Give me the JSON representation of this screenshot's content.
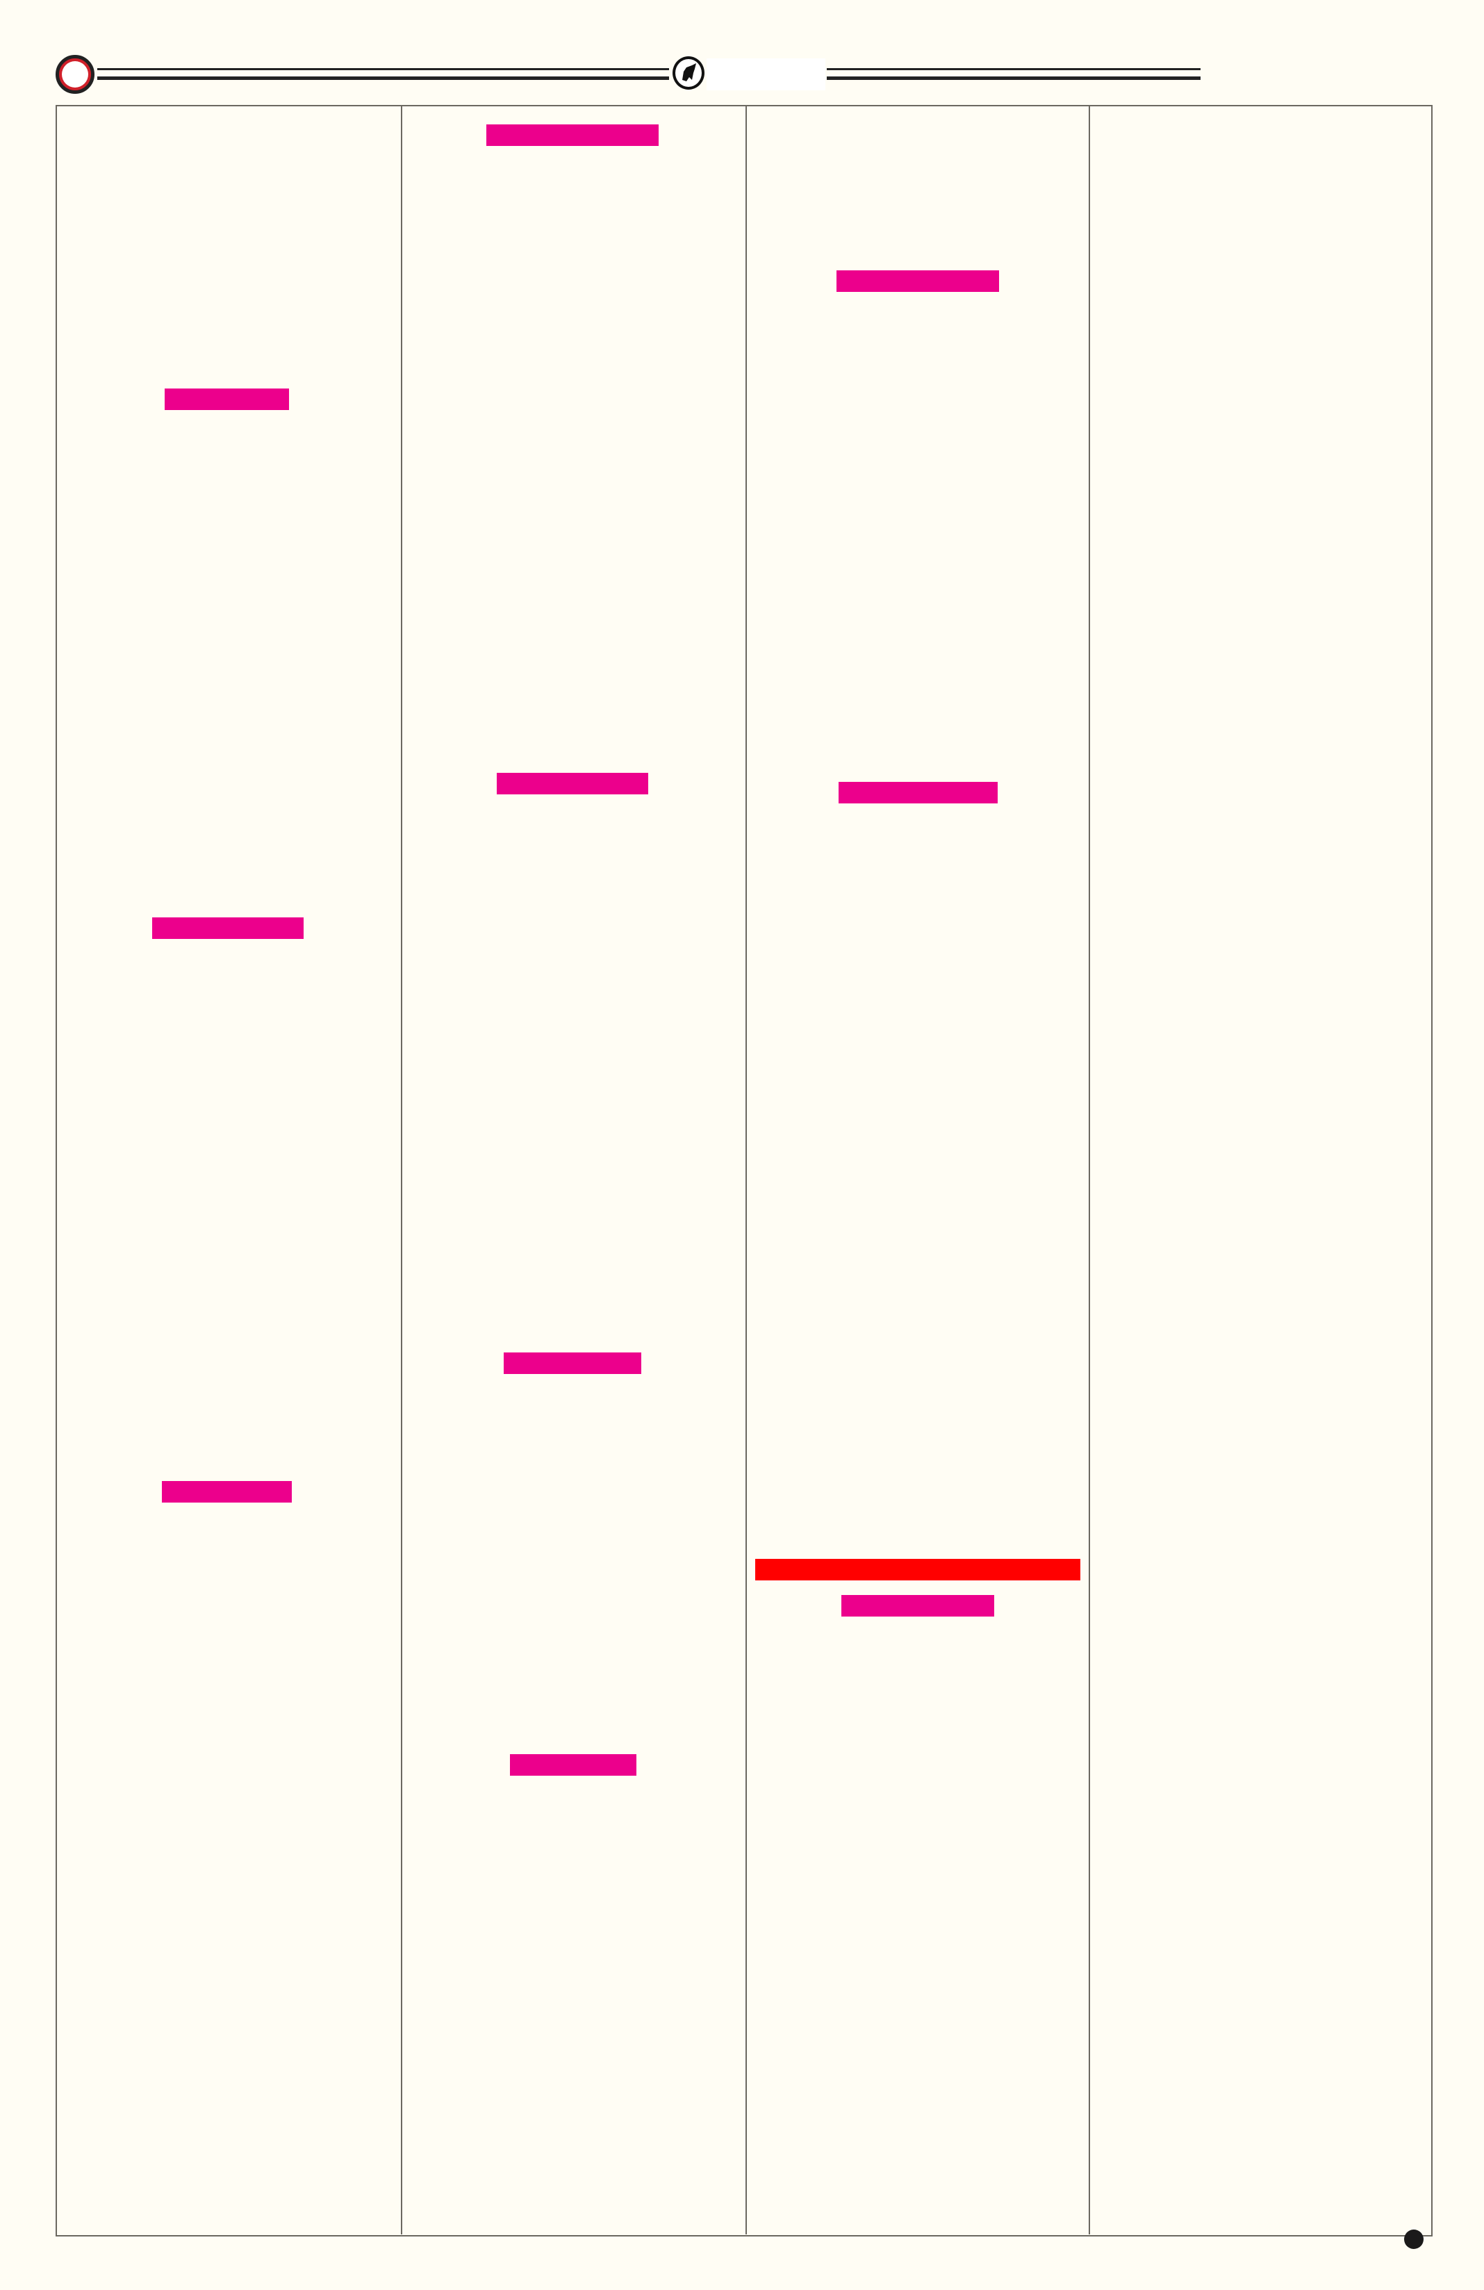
{
  "colors": {
    "background": "#fffdf4",
    "heading_bar": "#ec008c",
    "highlight_bar": "#ff0000",
    "rule": "#222222",
    "border": "#6b6860",
    "emblem_ring": "#d0202a"
  },
  "header": {
    "left_emblem_icon": "ring-icon",
    "center_logo_icon": "bull-logo-icon"
  },
  "columns": [
    {
      "heading_bars": 3
    },
    {
      "heading_bars": 4
    },
    {
      "heading_bars": 2,
      "highlight_bars": 1,
      "sub_bars": 1
    },
    {
      "heading_bars": 0
    }
  ],
  "footer": {
    "page_marker_icon": "dot-icon"
  }
}
